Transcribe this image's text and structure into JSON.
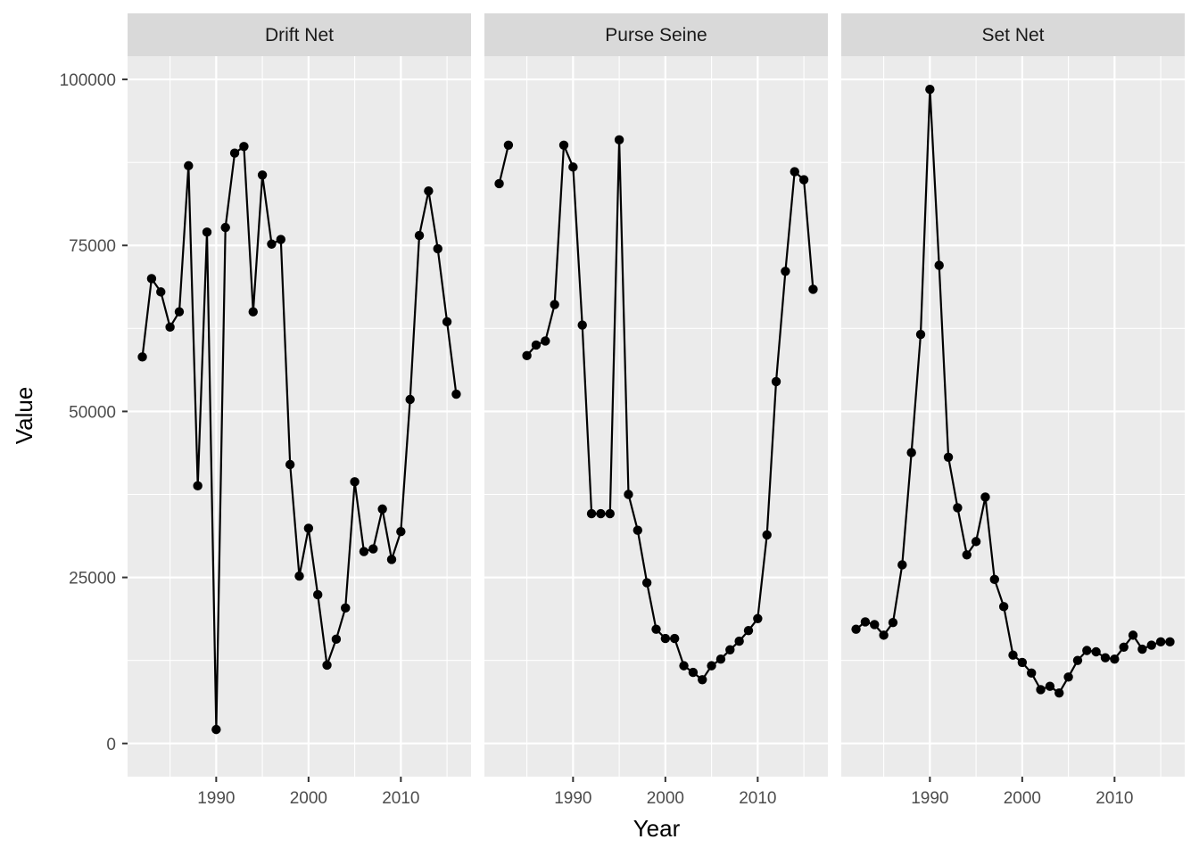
{
  "chart_data": {
    "type": "line",
    "xlabel": "Year",
    "ylabel": "Value",
    "xlim": [
      1980.4,
      2017.6
    ],
    "ylim": [
      -5000,
      103500
    ],
    "x_ticks": [
      1990,
      2000,
      2010
    ],
    "y_ticks": [
      0,
      25000,
      50000,
      75000,
      100000
    ],
    "x_tick_labels": [
      "1990",
      "2000",
      "2010"
    ],
    "y_tick_labels": [
      "0",
      "25000",
      "50000",
      "75000",
      "100000"
    ],
    "grid": true,
    "panels": [
      {
        "name": "Drift Net",
        "x": [
          1982,
          1983,
          1984,
          1985,
          1986,
          1987,
          1988,
          1989,
          1990,
          1991,
          1992,
          1993,
          1994,
          1995,
          1996,
          1997,
          1998,
          1999,
          2000,
          2001,
          2002,
          2003,
          2004,
          2005,
          2006,
          2007,
          2008,
          2009,
          2010,
          2011,
          2012,
          2013,
          2014,
          2015,
          2016
        ],
        "values": [
          58200,
          70000,
          68000,
          62700,
          65000,
          87000,
          38800,
          77000,
          2100,
          77700,
          88900,
          89900,
          65000,
          85600,
          75200,
          75900,
          42000,
          25200,
          32400,
          22400,
          11800,
          15700,
          20400,
          39400,
          28900,
          29300,
          35300,
          27700,
          31900,
          51800,
          76500,
          83200,
          74500,
          63500,
          52600
        ]
      },
      {
        "name": "Purse Seine",
        "x": [
          1982,
          1983,
          1984,
          1985,
          1986,
          1987,
          1988,
          1989,
          1990,
          1991,
          1992,
          1993,
          1994,
          1995,
          1996,
          1997,
          1998,
          1999,
          2000,
          2001,
          2002,
          2003,
          2004,
          2005,
          2006,
          2007,
          2008,
          2009,
          2010,
          2011,
          2012,
          2013,
          2014,
          2015,
          2016
        ],
        "values": [
          84300,
          90100,
          null,
          58400,
          60000,
          60600,
          66100,
          90100,
          86800,
          63000,
          34600,
          34600,
          34600,
          90900,
          37500,
          32100,
          24200,
          17200,
          15800,
          15800,
          11700,
          10700,
          9600,
          11700,
          12700,
          14100,
          15400,
          17000,
          18800,
          31400,
          54500,
          71100,
          86100,
          84900,
          68400
        ]
      },
      {
        "name": "Set Net",
        "x": [
          1982,
          1983,
          1984,
          1985,
          1986,
          1987,
          1988,
          1989,
          1990,
          1991,
          1992,
          1993,
          1994,
          1995,
          1996,
          1997,
          1998,
          1999,
          2000,
          2001,
          2002,
          2003,
          2004,
          2005,
          2006,
          2007,
          2008,
          2009,
          2010,
          2011,
          2012,
          2013,
          2014,
          2015,
          2016
        ],
        "values": [
          17200,
          18300,
          17900,
          16300,
          18200,
          26900,
          43800,
          61600,
          98500,
          72000,
          43100,
          35500,
          28400,
          30400,
          37100,
          24700,
          20600,
          13300,
          12200,
          10600,
          8100,
          8600,
          7600,
          10000,
          12500,
          14000,
          13800,
          12900,
          12700,
          14500,
          16300,
          14200,
          14800,
          15300,
          15300
        ]
      }
    ]
  }
}
